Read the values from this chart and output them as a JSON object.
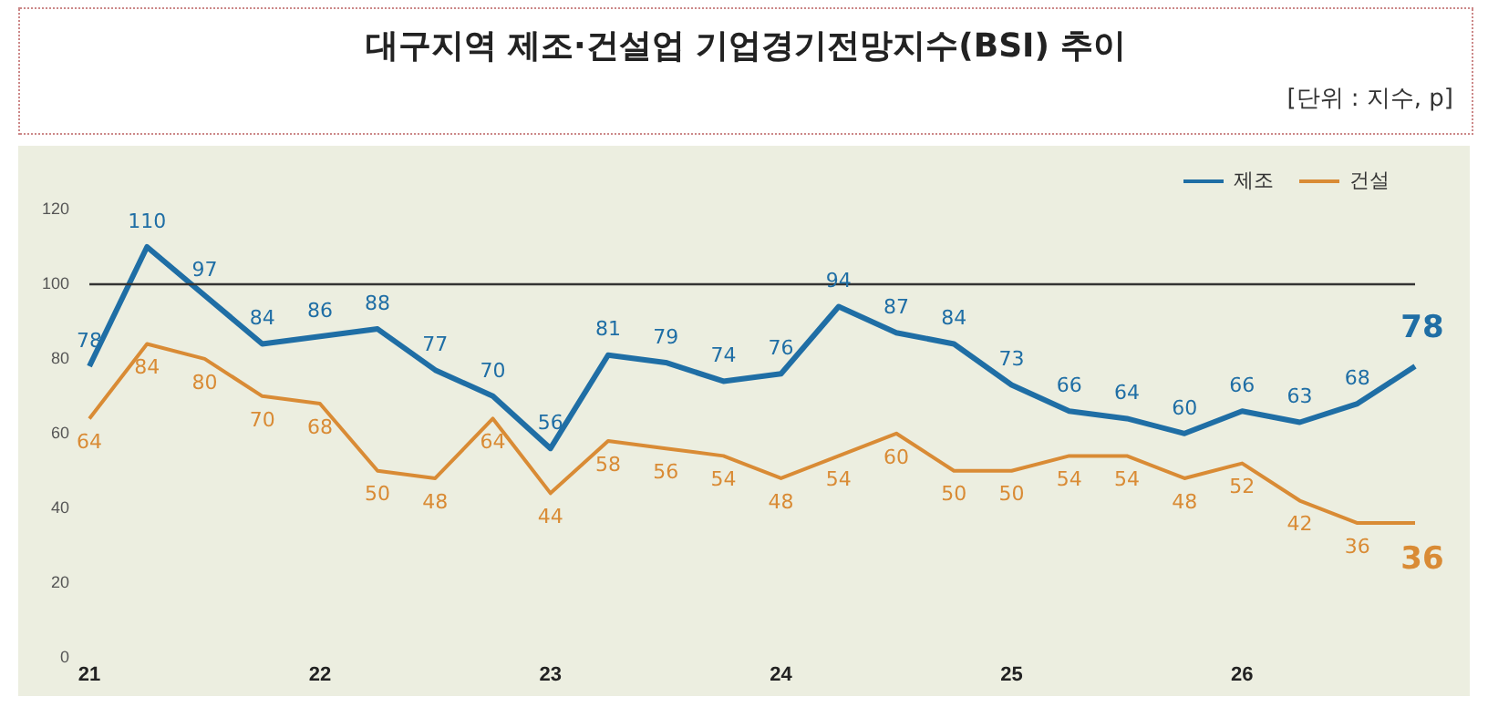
{
  "chart_data": {
    "type": "line",
    "title": "대구지역  제조·건설업  기업경기전망지수(BSI)  추이",
    "annotations": [
      "[단위 : 지수, p]"
    ],
    "categories": [
      "21",
      null,
      null,
      null,
      "22",
      null,
      null,
      null,
      "23",
      null,
      null,
      null,
      "24",
      null,
      null,
      null,
      "25",
      null,
      null,
      null,
      "26",
      null,
      null,
      null
    ],
    "series": [
      {
        "name": "제조",
        "color": "#1f6ea5",
        "values": [
          78,
          110,
          97,
          84,
          86,
          88,
          77,
          70,
          56,
          81,
          79,
          74,
          76,
          94,
          87,
          84,
          73,
          66,
          64,
          60,
          66,
          63,
          68,
          78
        ]
      },
      {
        "name": "건설",
        "color": "#d98b35",
        "values": [
          64,
          84,
          80,
          70,
          68,
          50,
          48,
          64,
          44,
          58,
          56,
          54,
          48,
          54,
          60,
          50,
          50,
          54,
          54,
          48,
          52,
          42,
          36,
          36
        ]
      }
    ],
    "ylim": [
      0,
      120
    ],
    "yticks": [
      0,
      20,
      40,
      60,
      80,
      100,
      120
    ],
    "grid": false,
    "legend": "top right",
    "marker": "none",
    "line_style": "solid",
    "data_labels": true,
    "ref_lines": [
      {
        "axis": "y",
        "value": 100,
        "color": "#333333"
      }
    ]
  }
}
